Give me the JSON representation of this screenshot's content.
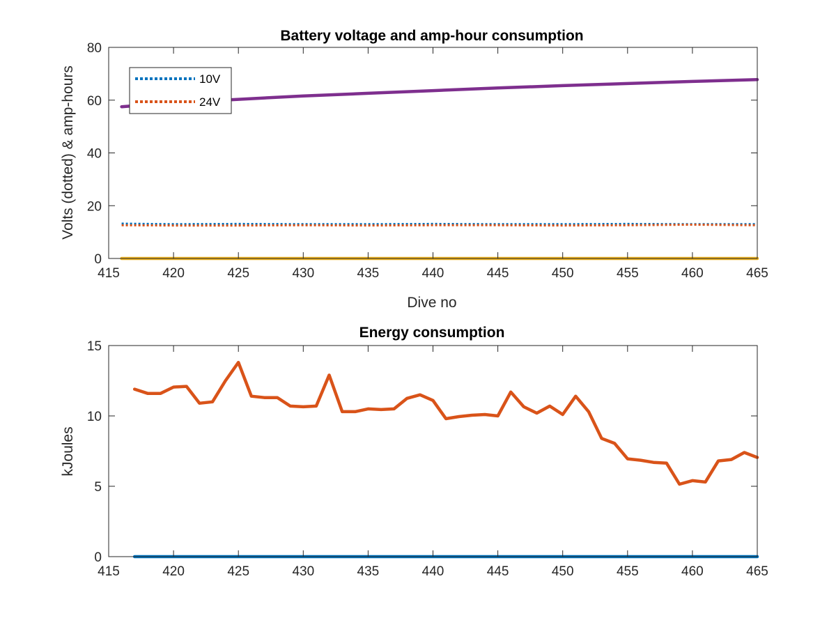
{
  "chart_data": [
    {
      "type": "line",
      "title": "Battery voltage and amp-hour consumption",
      "xlabel": "Dive no",
      "ylabel": "Volts (dotted) & amp-hours",
      "xlim": [
        415,
        465
      ],
      "ylim": [
        0,
        80
      ],
      "xticks": [
        415,
        420,
        425,
        430,
        435,
        440,
        445,
        450,
        455,
        460,
        465
      ],
      "yticks": [
        0,
        20,
        40,
        60,
        80
      ],
      "grid": false,
      "legend": "top-left",
      "series": [
        {
          "name": "10V",
          "style": "dotted",
          "color": "#0072BD",
          "x": [
            416,
            420,
            425,
            430,
            435,
            440,
            445,
            450,
            455,
            460,
            465
          ],
          "y": [
            13.2,
            13.0,
            13.1,
            13.0,
            13.0,
            13.1,
            13.0,
            13.0,
            13.1,
            13.0,
            13.0
          ]
        },
        {
          "name": "24V",
          "style": "dotted",
          "color": "#D95319",
          "x": [
            416,
            420,
            425,
            430,
            435,
            440,
            445,
            450,
            455,
            460,
            465
          ],
          "y": [
            12.6,
            12.5,
            12.5,
            12.6,
            12.5,
            12.6,
            12.6,
            12.5,
            12.6,
            12.8,
            12.6
          ]
        },
        {
          "style": "solid",
          "color": "#7E2F8E",
          "x": [
            416,
            418,
            420,
            425,
            430,
            435,
            440,
            445,
            450,
            455,
            460,
            465
          ],
          "y": [
            57.5,
            58.3,
            59.0,
            60.3,
            61.6,
            62.6,
            63.6,
            64.6,
            65.5,
            66.3,
            67.1,
            67.8
          ]
        },
        {
          "style": "solid",
          "color": "#EDB120",
          "x": [
            416,
            465
          ],
          "y": [
            0,
            0
          ]
        }
      ]
    },
    {
      "type": "line",
      "title": "Energy consumption",
      "xlabel": "",
      "ylabel": "kJoules",
      "xlim": [
        415,
        465
      ],
      "ylim": [
        0,
        15
      ],
      "xticks": [
        415,
        420,
        425,
        430,
        435,
        440,
        445,
        450,
        455,
        460,
        465
      ],
      "yticks": [
        0,
        5,
        10,
        15
      ],
      "grid": false,
      "series": [
        {
          "style": "solid",
          "color": "#D95319",
          "x": [
            417,
            418,
            419,
            420,
            421,
            422,
            423,
            424,
            425,
            426,
            427,
            428,
            429,
            430,
            431,
            432,
            433,
            434,
            435,
            436,
            437,
            438,
            439,
            440,
            441,
            442,
            443,
            444,
            445,
            446,
            447,
            448,
            449,
            450,
            451,
            452,
            453,
            454,
            455,
            456,
            457,
            458,
            459,
            460,
            461,
            462,
            463,
            464,
            465
          ],
          "y": [
            11.9,
            11.6,
            11.6,
            12.05,
            12.1,
            10.9,
            11.0,
            12.5,
            13.8,
            11.4,
            11.3,
            11.3,
            10.7,
            10.65,
            10.7,
            12.9,
            10.3,
            10.3,
            10.5,
            10.45,
            10.5,
            11.25,
            11.5,
            11.1,
            9.8,
            9.95,
            10.05,
            10.1,
            10.0,
            11.7,
            10.65,
            10.2,
            10.7,
            10.1,
            11.4,
            10.3,
            8.4,
            8.05,
            6.95,
            6.85,
            6.7,
            6.65,
            5.15,
            5.4,
            5.3,
            6.8,
            6.9,
            7.4,
            7.05
          ]
        },
        {
          "style": "solid",
          "color": "#0072BD",
          "x": [
            417,
            465
          ],
          "y": [
            0,
            0
          ]
        }
      ]
    }
  ]
}
